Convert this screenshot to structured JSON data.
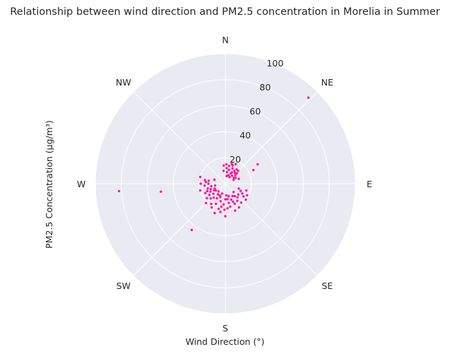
{
  "chart_data": {
    "type": "scatter",
    "projection": "polar",
    "title": "Relationship between wind direction and PM2.5 concentration in Morelia in Summer",
    "xlabel": "Wind Direction (°)",
    "ylabel": "PM2.5 Concentration (µg/m³)",
    "direction_labels": [
      "N",
      "NE",
      "E",
      "SE",
      "S",
      "SW",
      "W",
      "NW"
    ],
    "radial_ticks": [
      "20",
      "40",
      "60",
      "80",
      "100"
    ],
    "rlim": [
      0,
      100
    ],
    "theta_zero": "N",
    "theta_direction": "clockwise",
    "grid": true,
    "marker_color": "#ff1493",
    "series": [
      {
        "points": [
          [
            44,
            92
          ],
          [
            59,
            29
          ],
          [
            64,
            24
          ],
          [
            266,
            82
          ],
          [
            263,
            50
          ],
          [
            216,
            44
          ],
          [
            22,
            15
          ],
          [
            28,
            17
          ],
          [
            35,
            12
          ],
          [
            45,
            14
          ],
          [
            12,
            14
          ],
          [
            30,
            10
          ],
          [
            40,
            8
          ],
          [
            5,
            12
          ],
          [
            8,
            9
          ],
          [
            20,
            7
          ],
          [
            50,
            10
          ],
          [
            60,
            9
          ],
          [
            70,
            11
          ],
          [
            25,
            13
          ],
          [
            15,
            11
          ],
          [
            33,
            6
          ],
          [
            3,
            15
          ],
          [
            18,
            16
          ],
          [
            42,
            11
          ],
          [
            55,
            8
          ],
          [
            10,
            6
          ],
          [
            38,
            14
          ],
          [
            48,
            12
          ],
          [
            65,
            7
          ],
          [
            28,
            9
          ],
          [
            352,
            10
          ],
          [
            355,
            14
          ],
          [
            110,
            11
          ],
          [
            120,
            15
          ],
          [
            130,
            13
          ],
          [
            140,
            19
          ],
          [
            150,
            21
          ],
          [
            155,
            17
          ],
          [
            160,
            13
          ],
          [
            165,
            10
          ],
          [
            170,
            15
          ],
          [
            175,
            19
          ],
          [
            180,
            12
          ],
          [
            185,
            16
          ],
          [
            190,
            22
          ],
          [
            195,
            14
          ],
          [
            200,
            11
          ],
          [
            205,
            17
          ],
          [
            210,
            13
          ],
          [
            215,
            19
          ],
          [
            220,
            14
          ],
          [
            225,
            16
          ],
          [
            230,
            12
          ],
          [
            235,
            15
          ],
          [
            240,
            10
          ],
          [
            245,
            9
          ],
          [
            250,
            12
          ],
          [
            255,
            14
          ],
          [
            260,
            11
          ],
          [
            265,
            16
          ],
          [
            270,
            19
          ],
          [
            275,
            15
          ],
          [
            280,
            13
          ],
          [
            285,
            20
          ],
          [
            290,
            9
          ],
          [
            200,
            24
          ],
          [
            180,
            25
          ],
          [
            160,
            22
          ],
          [
            145,
            16
          ],
          [
            135,
            9
          ],
          [
            115,
            13
          ],
          [
            125,
            17
          ],
          [
            190,
            18
          ],
          [
            215,
            10
          ],
          [
            235,
            9
          ],
          [
            245,
            17
          ],
          [
            255,
            20
          ],
          [
            260,
            8
          ],
          [
            225,
            21
          ],
          [
            175,
            9
          ],
          [
            195,
            20
          ],
          [
            210,
            21
          ],
          [
            205,
            10
          ],
          [
            150,
            11
          ],
          [
            138,
            14
          ],
          [
            168,
            18
          ],
          [
            182,
            20
          ],
          [
            242,
            13
          ],
          [
            270,
            13
          ],
          [
            280,
            16
          ],
          [
            232,
            18
          ],
          [
            198,
            8
          ],
          [
            222,
            8
          ],
          [
            248,
            15
          ],
          [
            172,
            12
          ],
          [
            157,
            15
          ],
          [
            143,
            12
          ],
          [
            128,
            20
          ],
          [
            118,
            19
          ],
          [
            108,
            17
          ]
        ]
      }
    ]
  }
}
